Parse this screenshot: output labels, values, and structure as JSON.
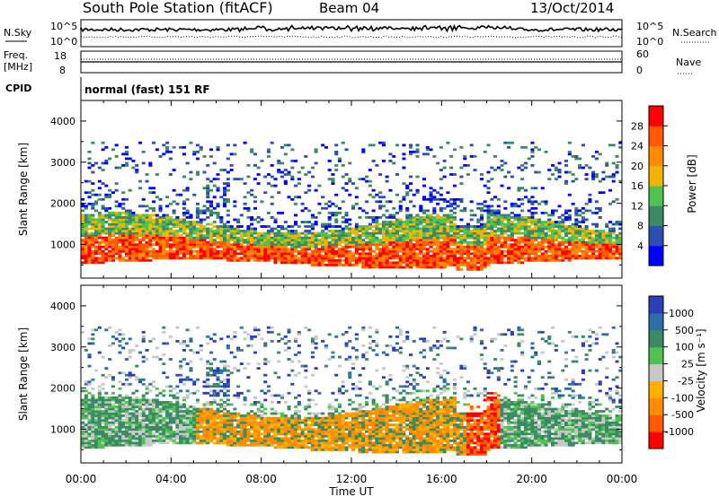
{
  "header": {
    "station": "South Pole Station (fitACF)",
    "beam": "Beam 04",
    "date": "13/Oct/2014",
    "cpid_label": "CPID",
    "cpid_value": "normal (fast) 151 RF"
  },
  "aux_panels": {
    "nsky_label": "N.Sky",
    "nsearch_label": "N.Search",
    "noise_ticks": [
      "10^5",
      "10^0"
    ],
    "freq_label_1": "Freq.",
    "freq_label_2": "[MHz]",
    "freq_ticks": [
      "18",
      "8"
    ],
    "nave_label": "Nave",
    "nave_ticks": [
      "60",
      "0"
    ]
  },
  "colors": {
    "power": [
      "#0000ff",
      "#2b4fb0",
      "#3a8a64",
      "#4fc24f",
      "#f2b400",
      "#ff8c00",
      "#ff5a00",
      "#ff0000"
    ],
    "velocity": [
      "#2a3fb8",
      "#2b6eaa",
      "#3a8a64",
      "#4fc24f",
      "#c8c8c8",
      "#ffb000",
      "#ff8c00",
      "#ff5a00",
      "#ff0000"
    ]
  },
  "chart_data": [
    {
      "type": "heatmap",
      "title": "",
      "xlabel": "",
      "ylabel": "Slant Range [km]",
      "xlim": [
        0,
        24
      ],
      "ylim": [
        180,
        4500
      ],
      "x_ticks": [
        "00:00",
        "04:00",
        "08:00",
        "12:00",
        "16:00",
        "20:00",
        "00:00"
      ],
      "y_ticks": [
        1000,
        2000,
        3000,
        4000
      ],
      "colorbar": {
        "label": "Power [dB]",
        "ticks": [
          "4",
          "8",
          "12",
          "16",
          "20",
          "24",
          "28"
        ],
        "range": [
          0,
          30
        ]
      }
    },
    {
      "type": "heatmap",
      "title": "",
      "xlabel": "Time UT",
      "ylabel": "Slant Range [km]",
      "xlim": [
        0,
        24
      ],
      "ylim": [
        180,
        4500
      ],
      "x_ticks": [
        "00:00",
        "04:00",
        "08:00",
        "12:00",
        "16:00",
        "20:00",
        "00:00"
      ],
      "y_ticks": [
        1000,
        2000,
        3000,
        4000
      ],
      "colorbar": {
        "label": "Velocity [m s⁻¹]",
        "ticks": [
          "1000",
          "500",
          "100",
          "25",
          "-25",
          "-100",
          "-500",
          "-1000"
        ]
      }
    }
  ]
}
